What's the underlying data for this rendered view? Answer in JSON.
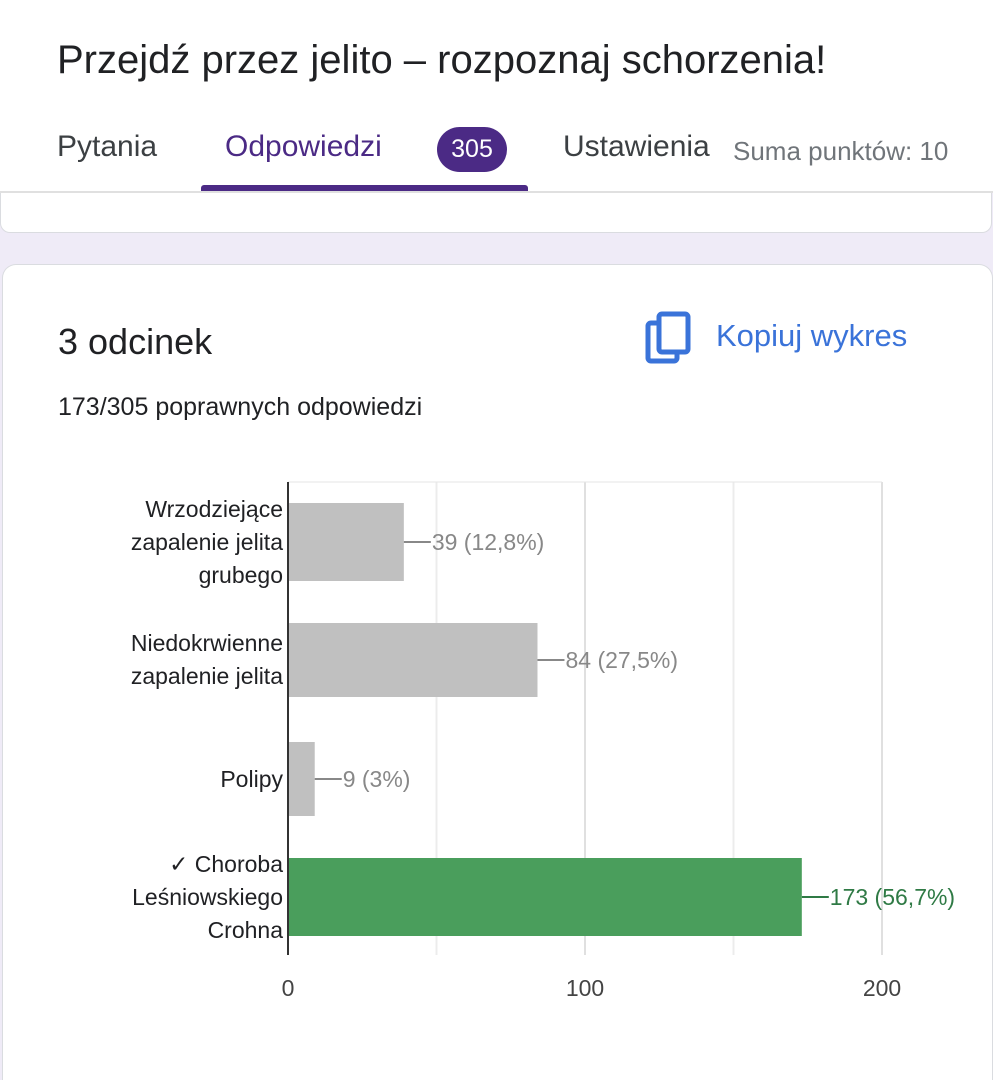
{
  "form": {
    "title": "Przejdź przez jelito – rozpoznaj schorzenia!"
  },
  "tabs": {
    "questions": "Pytania",
    "responses": "Odpowiedzi",
    "responses_count": "305",
    "settings": "Ustawienia",
    "points_total": "Suma punktów: 10",
    "active": "responses"
  },
  "section": {
    "title": "3 odcinek",
    "copy_chart_label": "Kopiuj wykres",
    "score": "173/305 poprawnych odpowiedzi"
  },
  "colors": {
    "accent": "#4b2a85",
    "link": "#3a73d9",
    "bar_default": "#c0c0c0",
    "bar_correct": "#4a9e5c",
    "label_default": "#888888",
    "label_correct": "#2f7a45"
  },
  "chart_data": {
    "type": "bar",
    "orientation": "horizontal",
    "categories": [
      "Wrzodziejące zapalenie jelita grubego",
      "Niedokrwienne zapalenie jelita",
      "Polipy",
      "✓ Choroba Leśniowskiego Crohna"
    ],
    "category_lines": [
      [
        "Wrzodziejące",
        "zapalenie jelita",
        "grubego"
      ],
      [
        "Niedokrwienne",
        "zapalenie jelita"
      ],
      [
        "Polipy"
      ],
      [
        "✓ Choroba",
        "Leśniowskiego",
        "Crohna"
      ]
    ],
    "values": [
      39,
      84,
      9,
      173
    ],
    "value_labels": [
      "39 (12,8%)",
      "84 (27,5%)",
      "9 (3%)",
      "173 (56,7%)"
    ],
    "correct": [
      false,
      false,
      false,
      true
    ],
    "x_ticks": [
      0,
      100,
      200
    ],
    "xlim": [
      0,
      200
    ],
    "grid": true
  }
}
